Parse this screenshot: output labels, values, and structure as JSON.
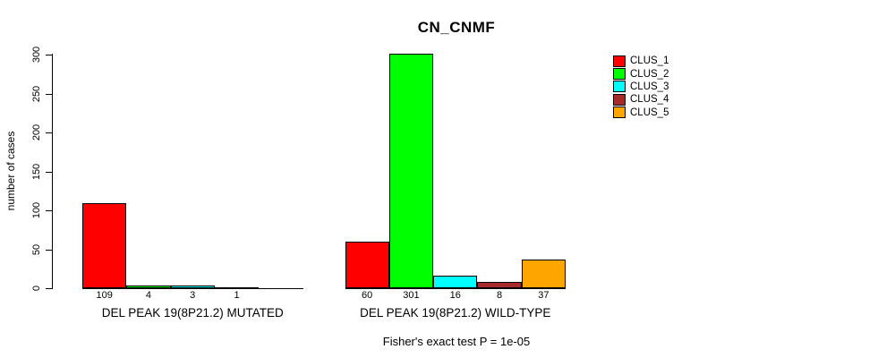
{
  "chart_data": {
    "type": "bar",
    "title": "CN_CNMF",
    "ylabel": "number of cases",
    "xlabel": "",
    "ylim": [
      0,
      300
    ],
    "yticks": [
      0,
      50,
      100,
      150,
      200,
      250,
      300
    ],
    "grid": false,
    "legend": {
      "position": "right",
      "entries": [
        {
          "label": "CLUS_1",
          "color": "#FF0000"
        },
        {
          "label": "CLUS_2",
          "color": "#00FF00"
        },
        {
          "label": "CLUS_3",
          "color": "#00FFFF"
        },
        {
          "label": "CLUS_4",
          "color": "#A52A2A"
        },
        {
          "label": "CLUS_5",
          "color": "#FFA500"
        }
      ]
    },
    "series_colors": [
      "#FF0000",
      "#00FF00",
      "#00FFFF",
      "#A52A2A",
      "#FFA500"
    ],
    "groups": [
      {
        "label": "DEL PEAK 19(8P21.2) MUTATED",
        "series": [
          "CLUS_1",
          "CLUS_2",
          "CLUS_3",
          "CLUS_4",
          "CLUS_5"
        ],
        "values": [
          109,
          4,
          3,
          1,
          0
        ],
        "value_labels": [
          "109",
          "4",
          "3",
          "1",
          ""
        ]
      },
      {
        "label": "DEL PEAK 19(8P21.2) WILD-TYPE",
        "series": [
          "CLUS_1",
          "CLUS_2",
          "CLUS_3",
          "CLUS_4",
          "CLUS_5"
        ],
        "values": [
          60,
          301,
          16,
          8,
          37
        ],
        "value_labels": [
          "60",
          "301",
          "16",
          "8",
          "37"
        ]
      }
    ],
    "footnote": "Fisher's exact test P = 1e-05"
  }
}
